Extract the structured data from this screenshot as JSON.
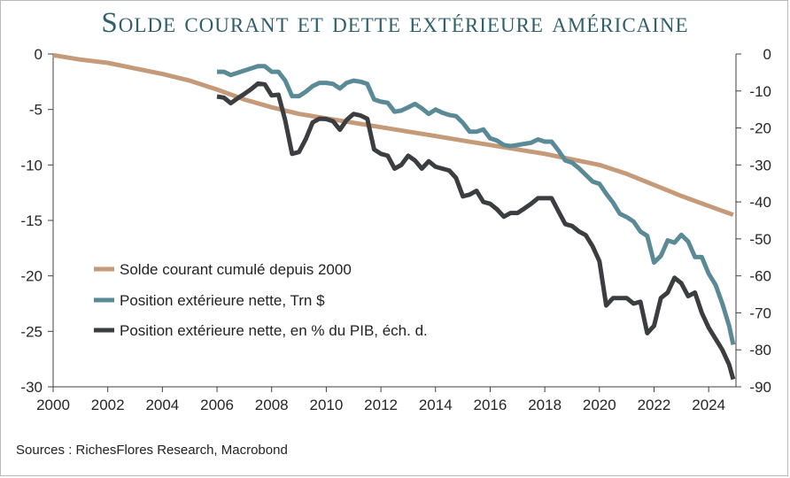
{
  "title": "Solde courant et dette extérieure américaine",
  "source": "Sources : RichesFlores Research, Macrobond",
  "chart_data": {
    "type": "line",
    "xlim": [
      2000,
      2025
    ],
    "x_ticks": [
      2000,
      2002,
      2004,
      2006,
      2008,
      2010,
      2012,
      2014,
      2016,
      2018,
      2020,
      2022,
      2024
    ],
    "ylim_left": [
      -30,
      0
    ],
    "y_ticks_left": [
      0,
      -5,
      -10,
      -15,
      -20,
      -25,
      -30
    ],
    "ylim_right": [
      -90,
      0
    ],
    "y_ticks_right": [
      0,
      -10,
      -20,
      -30,
      -40,
      -50,
      -60,
      -70,
      -80,
      -90
    ],
    "legend_position": "center-left",
    "series": [
      {
        "name": "Solde courant cumulé depuis 2000",
        "axis": "left",
        "color": "#c49a78",
        "points": [
          [
            2000,
            -0.1
          ],
          [
            2001,
            -0.5
          ],
          [
            2002,
            -0.8
          ],
          [
            2003,
            -1.3
          ],
          [
            2004,
            -1.8
          ],
          [
            2005,
            -2.4
          ],
          [
            2006,
            -3.2
          ],
          [
            2007,
            -4.1
          ],
          [
            2008,
            -4.8
          ],
          [
            2009,
            -5.4
          ],
          [
            2010,
            -5.8
          ],
          [
            2011,
            -6.2
          ],
          [
            2012,
            -6.6
          ],
          [
            2013,
            -7.0
          ],
          [
            2014,
            -7.4
          ],
          [
            2015,
            -7.8
          ],
          [
            2016,
            -8.2
          ],
          [
            2017,
            -8.6
          ],
          [
            2018,
            -9.0
          ],
          [
            2019,
            -9.5
          ],
          [
            2020,
            -10.0
          ],
          [
            2021,
            -10.8
          ],
          [
            2022,
            -11.8
          ],
          [
            2023,
            -12.8
          ],
          [
            2024,
            -13.7
          ],
          [
            2024.9,
            -14.5
          ]
        ]
      },
      {
        "name": "Position extérieure nette, Trn $",
        "axis": "left",
        "color": "#5a8a96",
        "points": [
          [
            2006.0,
            -1.6
          ],
          [
            2006.25,
            -1.6
          ],
          [
            2006.5,
            -1.9
          ],
          [
            2006.75,
            -1.7
          ],
          [
            2007.0,
            -1.5
          ],
          [
            2007.25,
            -1.3
          ],
          [
            2007.5,
            -1.1
          ],
          [
            2007.75,
            -1.1
          ],
          [
            2008.0,
            -1.6
          ],
          [
            2008.25,
            -1.6
          ],
          [
            2008.5,
            -2.4
          ],
          [
            2008.75,
            -3.8
          ],
          [
            2009.0,
            -3.8
          ],
          [
            2009.25,
            -3.4
          ],
          [
            2009.5,
            -2.9
          ],
          [
            2009.75,
            -2.6
          ],
          [
            2010.0,
            -2.6
          ],
          [
            2010.25,
            -2.7
          ],
          [
            2010.5,
            -3.1
          ],
          [
            2010.75,
            -2.6
          ],
          [
            2011.0,
            -2.4
          ],
          [
            2011.25,
            -2.5
          ],
          [
            2011.5,
            -2.7
          ],
          [
            2011.75,
            -4.1
          ],
          [
            2012.0,
            -4.3
          ],
          [
            2012.25,
            -4.4
          ],
          [
            2012.5,
            -5.2
          ],
          [
            2012.75,
            -5.1
          ],
          [
            2013.0,
            -4.8
          ],
          [
            2013.25,
            -4.5
          ],
          [
            2013.5,
            -4.9
          ],
          [
            2013.75,
            -5.4
          ],
          [
            2014.0,
            -5.0
          ],
          [
            2014.25,
            -5.3
          ],
          [
            2014.5,
            -5.5
          ],
          [
            2014.75,
            -5.6
          ],
          [
            2015.0,
            -6.2
          ],
          [
            2015.25,
            -7.0
          ],
          [
            2015.5,
            -7.0
          ],
          [
            2015.75,
            -6.8
          ],
          [
            2016.0,
            -7.6
          ],
          [
            2016.25,
            -7.8
          ],
          [
            2016.5,
            -8.2
          ],
          [
            2016.75,
            -8.3
          ],
          [
            2017.0,
            -8.2
          ],
          [
            2017.25,
            -8.1
          ],
          [
            2017.5,
            -8.0
          ],
          [
            2017.75,
            -7.7
          ],
          [
            2018.0,
            -7.9
          ],
          [
            2018.25,
            -7.9
          ],
          [
            2018.5,
            -8.7
          ],
          [
            2018.75,
            -9.6
          ],
          [
            2019.0,
            -9.8
          ],
          [
            2019.25,
            -10.3
          ],
          [
            2019.5,
            -10.9
          ],
          [
            2019.75,
            -11.5
          ],
          [
            2020.0,
            -11.7
          ],
          [
            2020.25,
            -12.6
          ],
          [
            2020.5,
            -13.4
          ],
          [
            2020.75,
            -14.4
          ],
          [
            2021.0,
            -14.7
          ],
          [
            2021.25,
            -15.1
          ],
          [
            2021.5,
            -16.0
          ],
          [
            2021.75,
            -16.4
          ],
          [
            2022.0,
            -18.8
          ],
          [
            2022.25,
            -18.2
          ],
          [
            2022.5,
            -16.8
          ],
          [
            2022.75,
            -17.0
          ],
          [
            2023.0,
            -16.3
          ],
          [
            2023.25,
            -16.9
          ],
          [
            2023.5,
            -18.3
          ],
          [
            2023.75,
            -18.3
          ],
          [
            2024.0,
            -19.8
          ],
          [
            2024.25,
            -20.8
          ],
          [
            2024.5,
            -22.5
          ],
          [
            2024.75,
            -24.5
          ],
          [
            2024.9,
            -26.2
          ]
        ]
      },
      {
        "name": "Position extérieure nette, en % du PIB, éch. d.",
        "axis": "right",
        "color": "#3c3d40",
        "points": [
          [
            2006.0,
            -11.5
          ],
          [
            2006.25,
            -11.8
          ],
          [
            2006.5,
            -13.3
          ],
          [
            2006.75,
            -12.0
          ],
          [
            2007.0,
            -10.8
          ],
          [
            2007.25,
            -9.5
          ],
          [
            2007.5,
            -8.0
          ],
          [
            2007.75,
            -8.2
          ],
          [
            2008.0,
            -11.2
          ],
          [
            2008.25,
            -11.0
          ],
          [
            2008.5,
            -18.0
          ],
          [
            2008.75,
            -27.0
          ],
          [
            2009.0,
            -26.5
          ],
          [
            2009.25,
            -23.0
          ],
          [
            2009.5,
            -18.5
          ],
          [
            2009.75,
            -17.5
          ],
          [
            2010.0,
            -17.6
          ],
          [
            2010.25,
            -18.2
          ],
          [
            2010.5,
            -20.5
          ],
          [
            2010.75,
            -17.8
          ],
          [
            2011.0,
            -16.2
          ],
          [
            2011.25,
            -16.6
          ],
          [
            2011.5,
            -17.5
          ],
          [
            2011.75,
            -25.8
          ],
          [
            2012.0,
            -27.0
          ],
          [
            2012.25,
            -27.5
          ],
          [
            2012.5,
            -31.0
          ],
          [
            2012.75,
            -30.0
          ],
          [
            2013.0,
            -27.5
          ],
          [
            2013.25,
            -28.8
          ],
          [
            2013.5,
            -31.0
          ],
          [
            2013.75,
            -29.0
          ],
          [
            2014.0,
            -30.5
          ],
          [
            2014.25,
            -31.0
          ],
          [
            2014.5,
            -31.5
          ],
          [
            2014.75,
            -33.5
          ],
          [
            2015.0,
            -38.5
          ],
          [
            2015.25,
            -38.0
          ],
          [
            2015.5,
            -37.0
          ],
          [
            2015.75,
            -40.0
          ],
          [
            2016.0,
            -40.5
          ],
          [
            2016.25,
            -42.0
          ],
          [
            2016.5,
            -44.0
          ],
          [
            2016.75,
            -43.0
          ],
          [
            2017.0,
            -43.0
          ],
          [
            2017.25,
            -41.8
          ],
          [
            2017.5,
            -40.5
          ],
          [
            2017.75,
            -39.0
          ],
          [
            2018.0,
            -39.0
          ],
          [
            2018.25,
            -39.0
          ],
          [
            2018.5,
            -42.5
          ],
          [
            2018.75,
            -46.0
          ],
          [
            2019.0,
            -46.5
          ],
          [
            2019.25,
            -48.0
          ],
          [
            2019.5,
            -49.0
          ],
          [
            2019.75,
            -52.0
          ],
          [
            2020.0,
            -56.0
          ],
          [
            2020.25,
            -68.0
          ],
          [
            2020.5,
            -66.0
          ],
          [
            2020.75,
            -66.0
          ],
          [
            2021.0,
            -66.0
          ],
          [
            2021.25,
            -67.5
          ],
          [
            2021.5,
            -67.0
          ],
          [
            2021.75,
            -75.5
          ],
          [
            2022.0,
            -73.5
          ],
          [
            2022.25,
            -66.0
          ],
          [
            2022.5,
            -64.5
          ],
          [
            2022.75,
            -60.5
          ],
          [
            2023.0,
            -62.0
          ],
          [
            2023.25,
            -65.5
          ],
          [
            2023.5,
            -64.5
          ],
          [
            2023.75,
            -70.0
          ],
          [
            2024.0,
            -74.0
          ],
          [
            2024.25,
            -77.0
          ],
          [
            2024.5,
            -80.0
          ],
          [
            2024.75,
            -84.0
          ],
          [
            2024.9,
            -88.0
          ]
        ]
      }
    ]
  }
}
